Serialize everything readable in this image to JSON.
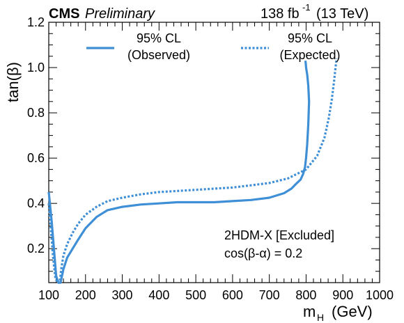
{
  "header": {
    "experiment": "CMS",
    "status": "Preliminary",
    "lumi": "138 fb",
    "lumi_exp": "-1",
    "energy": "(13 TeV)"
  },
  "annotation": {
    "line1": "2HDM-X [Excluded]",
    "line2": "cos(β-α) = 0.2"
  },
  "colors": {
    "curve": "#3f8fd6"
  },
  "chart_data": {
    "type": "line",
    "xlabel": "m",
    "xlabel_sub": "H",
    "xlabel_unit": "(GeV)",
    "ylabel": "tan(β)",
    "xlim": [
      100,
      1000
    ],
    "ylim": [
      0.05,
      1.2
    ],
    "xticks": [
      100,
      200,
      300,
      400,
      500,
      600,
      700,
      800,
      900,
      1000
    ],
    "yticks": [
      0.2,
      0.4,
      0.6,
      0.8,
      1.0,
      1.2
    ],
    "ytick_labels": [
      "0.2",
      "0.4",
      "0.6",
      "0.8",
      "1.0",
      "1.2"
    ],
    "legend_position": "top",
    "series": [
      {
        "name": "95% CL (Observed)",
        "legend_line1": "95% CL",
        "legend_line2": "(Observed)",
        "style": "solid",
        "x": [
          100,
          108,
          114,
          120,
          126,
          132,
          140,
          150,
          165,
          180,
          200,
          230,
          260,
          300,
          350,
          400,
          450,
          500,
          550,
          600,
          650,
          700,
          740,
          760,
          775,
          785,
          792,
          797,
          800,
          803,
          806,
          808,
          806,
          803,
          800,
          799,
          798
        ],
        "y": [
          0.45,
          0.32,
          0.2,
          0.08,
          0.05,
          0.05,
          0.11,
          0.16,
          0.2,
          0.24,
          0.29,
          0.34,
          0.37,
          0.385,
          0.395,
          0.4,
          0.405,
          0.405,
          0.405,
          0.41,
          0.415,
          0.425,
          0.445,
          0.465,
          0.49,
          0.505,
          0.53,
          0.56,
          0.6,
          0.66,
          0.75,
          0.85,
          0.92,
          0.97,
          1.0,
          1.02,
          1.03
        ]
      },
      {
        "name": "95% CL (Expected)",
        "legend_line1": "95% CL",
        "legend_line2": "(Expected)",
        "style": "dotted",
        "x": [
          100,
          106,
          112,
          118,
          124,
          130,
          134,
          140,
          150,
          165,
          180,
          200,
          230,
          260,
          300,
          350,
          400,
          450,
          500,
          550,
          600,
          650,
          700,
          750,
          800,
          830,
          850,
          862,
          870,
          876,
          880,
          883
        ],
        "y": [
          0.4,
          0.28,
          0.16,
          0.07,
          0.05,
          0.05,
          0.11,
          0.17,
          0.22,
          0.27,
          0.31,
          0.35,
          0.385,
          0.41,
          0.425,
          0.44,
          0.45,
          0.455,
          0.46,
          0.465,
          0.47,
          0.48,
          0.49,
          0.51,
          0.55,
          0.61,
          0.69,
          0.78,
          0.86,
          0.94,
          1.0,
          1.04
        ]
      }
    ]
  }
}
